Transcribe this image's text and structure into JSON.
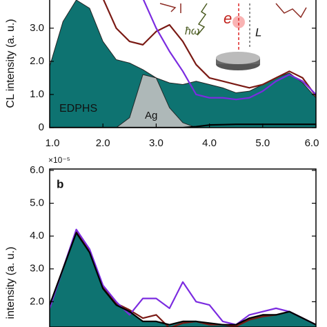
{
  "chart_data": [
    {
      "type": "line",
      "ylabel": "CL intensity (a. u.)",
      "x": [
        1.0,
        1.25,
        1.5,
        1.75,
        2.0,
        2.25,
        2.5,
        2.75,
        3.0,
        3.25,
        3.5,
        3.75,
        4.0,
        4.25,
        4.5,
        4.75,
        5.0,
        5.25,
        5.5,
        5.75,
        6.0
      ],
      "xlim": [
        1.0,
        6.0
      ],
      "xticks": [
        {
          "value": 1.0,
          "label": "1.0"
        },
        {
          "value": 2.0,
          "label": "2.0"
        },
        {
          "value": 3.0,
          "label": "3.0"
        },
        {
          "value": 4.0,
          "label": "4.0"
        },
        {
          "value": 5.0,
          "label": "5.0"
        },
        {
          "value": 6.0,
          "label": "6.0"
        }
      ],
      "ylim": [
        0,
        3.85
      ],
      "yticks": [
        0,
        {
          "value": 1.0,
          "label": "1.0"
        },
        {
          "value": 2.0,
          "label": "2.0"
        },
        {
          "value": 3.0,
          "label": "3.0"
        }
      ],
      "series": [
        {
          "color": "#0e7371",
          "fill": true,
          "values": [
            1.85,
            3.2,
            3.85,
            3.6,
            2.6,
            2.05,
            1.95,
            1.75,
            1.5,
            1.35,
            1.3,
            1.4,
            1.3,
            1.2,
            1.05,
            1.1,
            1.3,
            1.5,
            1.65,
            1.35,
            0.9
          ]
        },
        {
          "color": "#c0c0c0",
          "fill": true,
          "values": [
            0,
            0,
            0,
            0,
            0,
            0,
            0.3,
            1.6,
            1.5,
            0.6,
            0.15,
            0,
            0,
            0,
            0,
            0,
            0,
            0,
            0,
            0,
            0
          ]
        },
        {
          "color": "#7a1a14",
          "fill": false,
          "values": [
            null,
            null,
            null,
            null,
            3.9,
            3.0,
            2.6,
            2.5,
            2.9,
            3.1,
            2.6,
            1.9,
            1.5,
            1.4,
            1.3,
            1.2,
            1.3,
            1.5,
            1.7,
            1.5,
            0.95
          ]
        },
        {
          "color": "#7b2be0",
          "fill": false,
          "values": [
            null,
            null,
            null,
            null,
            null,
            null,
            null,
            3.9,
            3.0,
            2.3,
            1.7,
            1.0,
            0.9,
            0.9,
            0.85,
            0.9,
            1.1,
            1.4,
            1.6,
            1.4,
            1.0
          ]
        },
        {
          "color": "#000000",
          "fill": false,
          "values": [
            0,
            0,
            0,
            0,
            0,
            0,
            0,
            0,
            0,
            0,
            0,
            0.03,
            0.08,
            0.09,
            0.1,
            0.1,
            0.1,
            0.1,
            0.1,
            0.1,
            0.1
          ]
        }
      ],
      "annotations": [
        "EDPHS",
        "Ag",
        "e",
        "L",
        "ħω"
      ]
    },
    {
      "type": "line",
      "panel": "b",
      "ylabel": "intensity (a. u.)",
      "scale_note": "×10⁻⁵",
      "x": [
        1.0,
        1.25,
        1.5,
        1.75,
        2.0,
        2.25,
        2.5,
        2.75,
        3.0,
        3.25,
        3.5,
        3.75,
        4.0,
        4.25,
        4.5,
        4.75,
        5.0,
        5.25,
        5.5,
        5.75,
        6.0
      ],
      "xlim": [
        1.0,
        6.0
      ],
      "ylim": [
        1.23,
        6.0
      ],
      "yticks": [
        {
          "value": 2.0,
          "label": "2.0"
        },
        {
          "value": 3.0,
          "label": "3.0"
        },
        {
          "value": 4.0,
          "label": "4.0"
        },
        {
          "value": 5.0,
          "label": "5.0"
        },
        {
          "value": 6.0,
          "label": "6.0"
        }
      ],
      "series": [
        {
          "color": "#0e7371",
          "fill": true,
          "values": [
            1.9,
            3.0,
            4.1,
            3.5,
            2.4,
            1.9,
            1.7,
            1.4,
            1.4,
            1.3,
            1.4,
            1.4,
            1.35,
            1.3,
            1.3,
            1.5,
            1.6,
            1.6,
            1.7,
            1.5,
            1.3
          ]
        },
        {
          "color": "#7a1a14",
          "fill": false,
          "values": [
            1.85,
            3.0,
            4.15,
            3.55,
            2.45,
            1.95,
            1.75,
            1.5,
            1.6,
            1.2,
            1.35,
            1.4,
            1.3,
            1.3,
            1.25,
            1.45,
            1.55,
            1.6,
            1.7,
            1.5,
            1.3
          ]
        },
        {
          "color": "#7b2be0",
          "fill": false,
          "values": [
            1.8,
            3.0,
            4.2,
            3.6,
            2.5,
            2.0,
            1.6,
            2.1,
            2.1,
            1.8,
            2.6,
            2.0,
            1.9,
            1.4,
            1.3,
            1.6,
            1.7,
            1.8,
            1.7,
            1.5,
            1.3
          ]
        },
        {
          "color": "#000000",
          "fill": false,
          "values": [
            1.9,
            3.0,
            4.1,
            3.5,
            2.4,
            1.9,
            1.7,
            1.4,
            1.4,
            1.3,
            1.4,
            1.4,
            1.35,
            1.3,
            1.3,
            1.5,
            1.6,
            1.6,
            1.7,
            1.5,
            1.3
          ]
        }
      ]
    }
  ]
}
